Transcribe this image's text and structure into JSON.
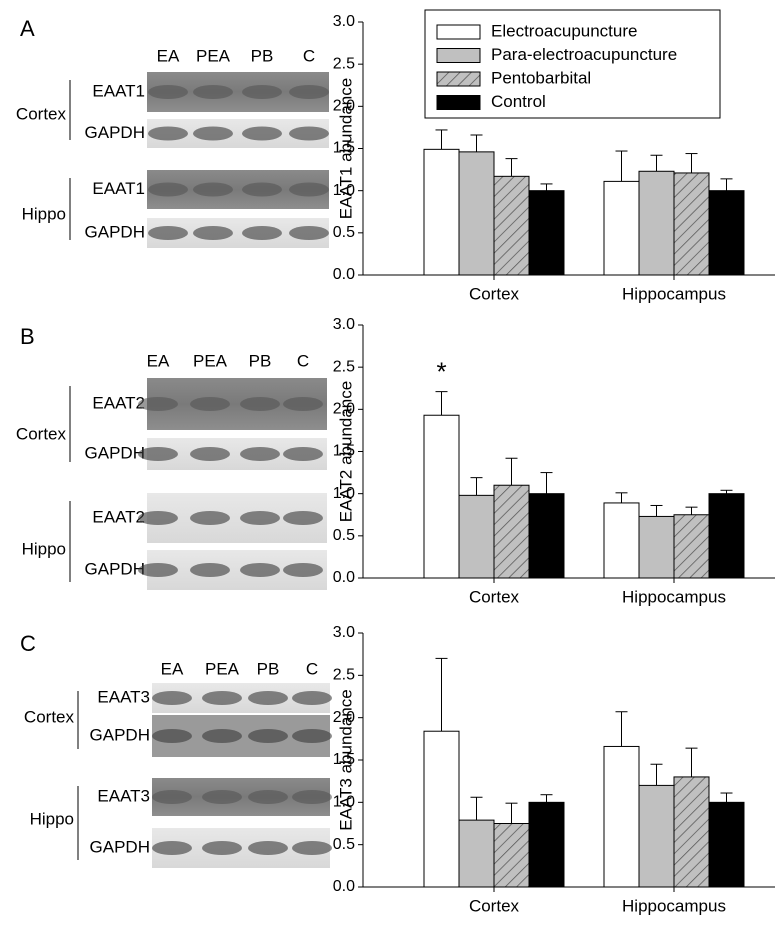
{
  "panels": [
    {
      "letter": "A",
      "lanes": [
        "EA",
        "PEA",
        "PB",
        "C"
      ],
      "regions": [
        {
          "name": "Cortex",
          "rows": [
            "EAAT1",
            "GAPDH"
          ]
        },
        {
          "name": "Hippo",
          "rows": [
            "EAAT1",
            "GAPDH"
          ]
        }
      ]
    },
    {
      "letter": "B",
      "lanes": [
        "EA",
        "PEA",
        "PB",
        "C"
      ],
      "regions": [
        {
          "name": "Cortex",
          "rows": [
            "EAAT2",
            "GAPDH"
          ]
        },
        {
          "name": "Hippo",
          "rows": [
            "EAAT2",
            "GAPDH"
          ]
        }
      ]
    },
    {
      "letter": "C",
      "lanes": [
        "EA",
        "PEA",
        "PB",
        "C"
      ],
      "regions": [
        {
          "name": "Cortex",
          "rows": [
            "EAAT3",
            "GAPDH"
          ]
        },
        {
          "name": "Hippo",
          "rows": [
            "EAAT3",
            "GAPDH"
          ]
        }
      ]
    }
  ],
  "chart_data": [
    {
      "type": "bar",
      "y_label": "EAAT1 abundance",
      "categories": [
        "Cortex",
        "Hippocampus"
      ],
      "ylim": [
        0,
        3
      ],
      "yticks": [
        {
          "value": 0,
          "label": "0.0"
        },
        {
          "value": 0.5,
          "label": "0.5"
        },
        {
          "value": 1,
          "label": "1.0"
        },
        {
          "value": 1.5,
          "label": "1.5"
        },
        {
          "value": 2,
          "label": "2.0"
        },
        {
          "value": 2.5,
          "label": "2.5"
        },
        {
          "value": 3,
          "label": "3.0"
        }
      ],
      "legend": "top-right",
      "series": [
        {
          "name": "Electroacupuncture",
          "color": "#ffffff",
          "values": [
            1.49,
            1.11
          ],
          "errors": [
            0.23,
            0.36
          ]
        },
        {
          "name": "Para-electroacupuncture",
          "color": "#c0c0c0",
          "values": [
            1.46,
            1.23
          ],
          "errors": [
            0.2,
            0.19
          ]
        },
        {
          "name": "Pentobarbital",
          "color": "#c0c0c0",
          "hatch": true,
          "values": [
            1.17,
            1.21
          ],
          "errors": [
            0.21,
            0.23
          ]
        },
        {
          "name": "Control",
          "color": "#000000",
          "values": [
            1.0,
            1.0
          ],
          "errors": [
            0.08,
            0.14
          ]
        }
      ]
    },
    {
      "type": "bar",
      "y_label": "EAAT2 abundance",
      "categories": [
        "Cortex",
        "Hippocampus"
      ],
      "annotation": "*",
      "ylim": [
        0,
        3
      ],
      "yticks": [
        {
          "value": 0,
          "label": "0.0"
        },
        {
          "value": 0.5,
          "label": "0.5"
        },
        {
          "value": 1,
          "label": "1.0"
        },
        {
          "value": 1.5,
          "label": "1.5"
        },
        {
          "value": 2,
          "label": "2.0"
        },
        {
          "value": 2.5,
          "label": "2.5"
        },
        {
          "value": 3,
          "label": "3.0"
        }
      ],
      "series": [
        {
          "color": "#ffffff",
          "values": [
            1.93,
            0.89
          ],
          "errors": [
            0.28,
            0.12
          ]
        },
        {
          "color": "#c0c0c0",
          "values": [
            0.98,
            0.73
          ],
          "errors": [
            0.21,
            0.13
          ]
        },
        {
          "color": "#c0c0c0",
          "hatch": true,
          "values": [
            1.1,
            0.75
          ],
          "errors": [
            0.32,
            0.09
          ]
        },
        {
          "color": "#000000",
          "values": [
            1.0,
            1.0
          ],
          "errors": [
            0.25,
            0.04
          ]
        }
      ]
    },
    {
      "type": "bar",
      "y_label": "EAAT3 abundance",
      "categories": [
        "Cortex",
        "Hippocampus"
      ],
      "ylim": [
        0,
        3
      ],
      "yticks": [
        {
          "value": 0,
          "label": "0.0"
        },
        {
          "value": 0.5,
          "label": "0.5"
        },
        {
          "value": 1,
          "label": "1.0"
        },
        {
          "value": 1.5,
          "label": "1.5"
        },
        {
          "value": 2,
          "label": "2.0"
        },
        {
          "value": 2.5,
          "label": "2.5"
        },
        {
          "value": 3,
          "label": "3.0"
        }
      ],
      "series": [
        {
          "color": "#ffffff",
          "values": [
            1.84,
            1.66
          ],
          "errors": [
            0.86,
            0.41
          ]
        },
        {
          "color": "#c0c0c0",
          "values": [
            0.79,
            1.2
          ],
          "errors": [
            0.27,
            0.25
          ]
        },
        {
          "color": "#c0c0c0",
          "hatch": true,
          "values": [
            0.75,
            1.3
          ],
          "errors": [
            0.24,
            0.34
          ]
        },
        {
          "color": "#000000",
          "values": [
            1.0,
            1.0
          ],
          "errors": [
            0.09,
            0.11
          ]
        }
      ]
    }
  ]
}
